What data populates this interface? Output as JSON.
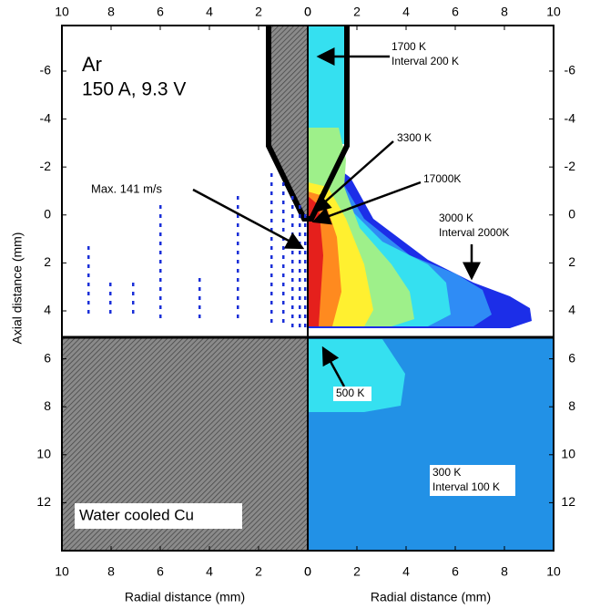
{
  "chart_data": {
    "type": "contour",
    "xlabel_left": "Radial distance (mm)",
    "xlabel_right": "Radial distance (mm)",
    "ylabel": "Axial distance (mm)",
    "xlim_left": [
      10,
      0
    ],
    "xticks_left": [
      10,
      8,
      6,
      4,
      2,
      0
    ],
    "xlim_right": [
      0,
      10
    ],
    "xticks_right": [
      0,
      2,
      4,
      6,
      8,
      10
    ],
    "ylim": [
      -7.9,
      14
    ],
    "yticks": [
      -6,
      -4,
      -2,
      0,
      2,
      4,
      6,
      8,
      10,
      12
    ],
    "annotations": [
      "Ar",
      "150 A, 9.3 V",
      "Max. 141 m/s",
      "1700 K",
      "Interval 200 K",
      "3300 K",
      "17000K",
      "3000 K",
      "Interval 2000K",
      "500 K",
      "300 K",
      "Interval 100 K",
      "Water cooled Cu"
    ]
  }
}
